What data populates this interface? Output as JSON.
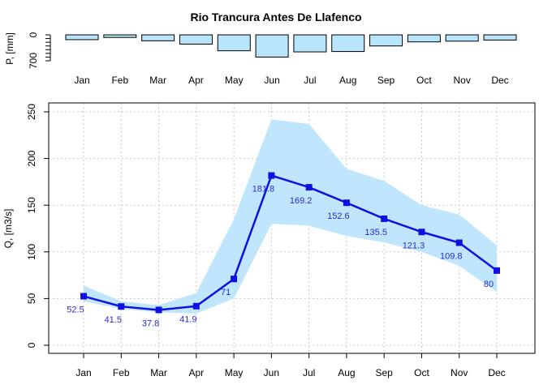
{
  "chart_data": [
    {
      "type": "bar",
      "title": "Rio Trancura Antes De Llafenco",
      "ylabel": "P, [mm]",
      "y_ticks": [
        0,
        700
      ],
      "ylim": [
        0,
        700
      ],
      "inverted_y": true,
      "categories": [
        "Jan",
        "Feb",
        "Mar",
        "Apr",
        "May",
        "Jun",
        "Jul",
        "Aug",
        "Sep",
        "Oct",
        "Nov",
        "Dec"
      ],
      "values": [
        130,
        70,
        160,
        250,
        430,
        600,
        460,
        450,
        300,
        190,
        170,
        140
      ],
      "bar_color": "#b8e4fc"
    },
    {
      "type": "line",
      "xlabel": "",
      "ylabel": "Q, [m3/s]",
      "ylim": [
        0,
        260
      ],
      "y_ticks": [
        0,
        50,
        100,
        150,
        200,
        250
      ],
      "grid": true,
      "categories": [
        "Jan",
        "Feb",
        "Mar",
        "Apr",
        "May",
        "Jun",
        "Jul",
        "Aug",
        "Sep",
        "Oct",
        "Nov",
        "Dec"
      ],
      "series": [
        {
          "values": [
            52.5,
            41.5,
            37.8,
            41.9,
            71,
            181.8,
            169.2,
            152.6,
            135.5,
            121.3,
            109.8,
            80
          ],
          "labels": [
            "52.5",
            "41.5",
            "37.8",
            "41.9",
            "71",
            "181.8",
            "169.2",
            "152.6",
            "135.5",
            "121.3",
            "109.8",
            "80"
          ],
          "color": "#1010e0"
        }
      ],
      "band": {
        "upper": [
          64,
          47,
          43,
          56,
          135,
          242,
          237,
          189,
          176,
          150,
          140,
          107
        ],
        "lower": [
          47,
          39,
          35,
          34,
          50,
          130,
          128,
          117,
          110,
          100,
          85,
          57
        ],
        "color": "#c0e6fd"
      }
    }
  ]
}
